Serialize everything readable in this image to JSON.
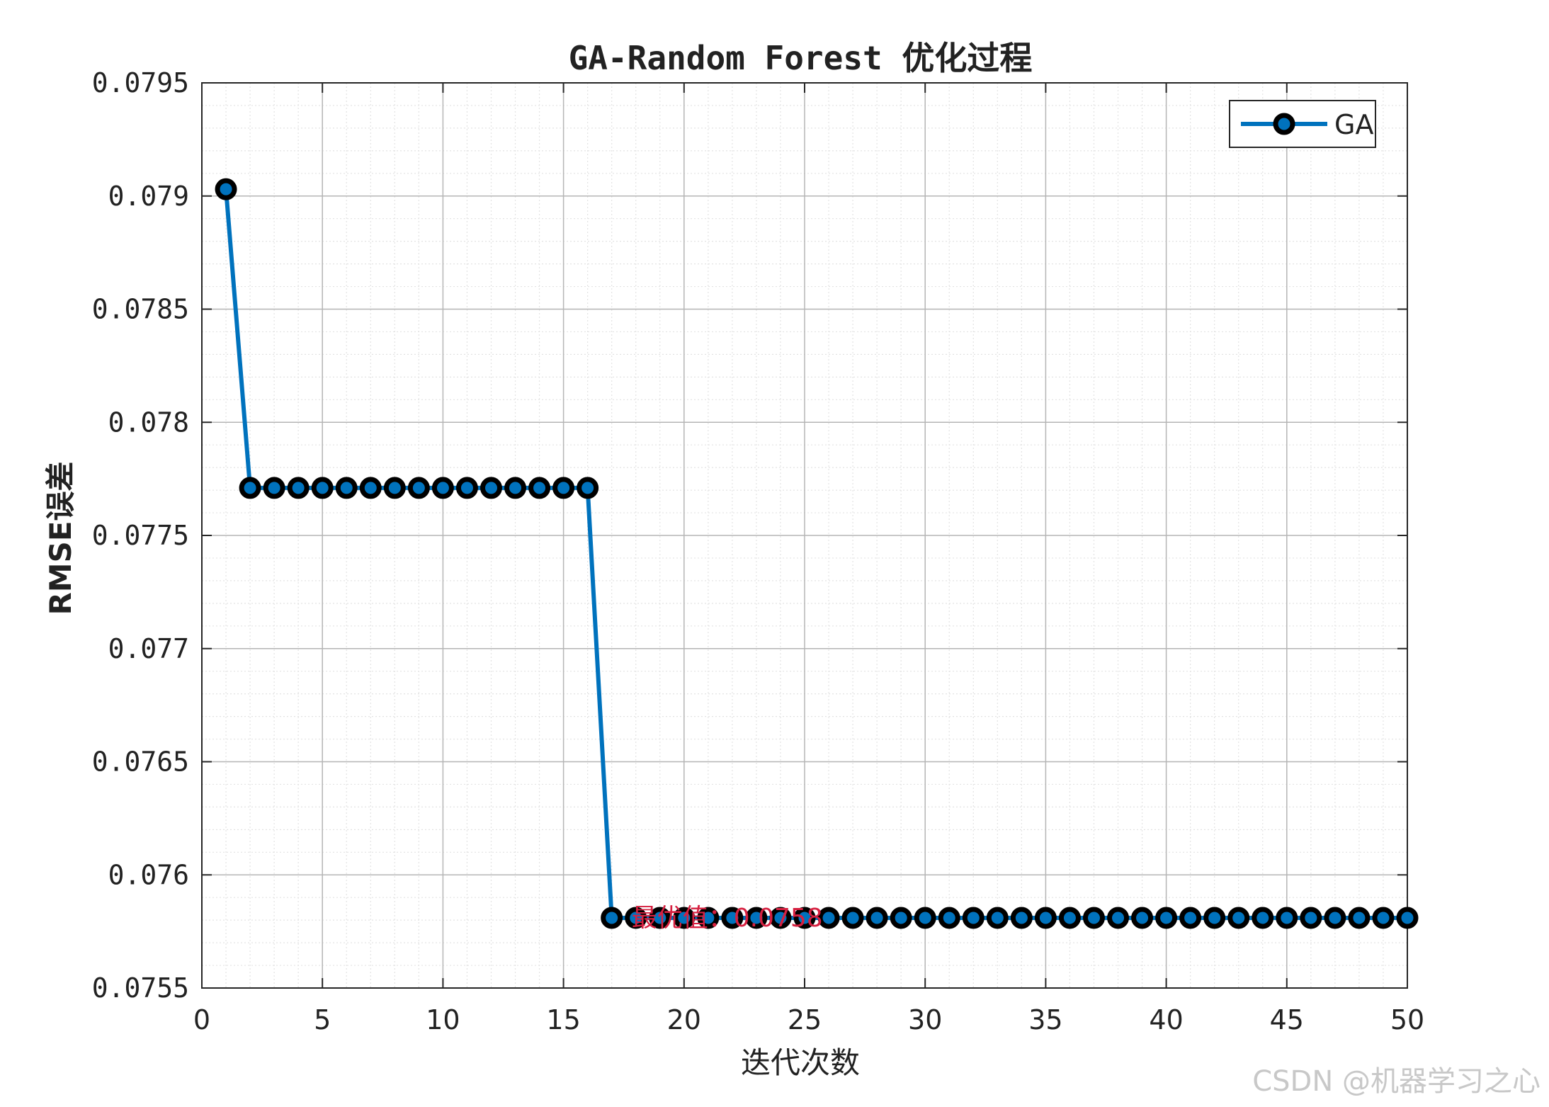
{
  "chart_data": {
    "type": "line",
    "title": "GA-Random Forest 优化过程",
    "xlabel": "迭代次数",
    "ylabel": "RMSE误差",
    "xlim": [
      0,
      50
    ],
    "ylim": [
      0.0755,
      0.0795
    ],
    "xticks": [
      0,
      5,
      10,
      15,
      20,
      25,
      30,
      35,
      40,
      45,
      50
    ],
    "xtick_labels": [
      "0",
      "5",
      "10",
      "15",
      "20",
      "25",
      "30",
      "35",
      "40",
      "45",
      "50"
    ],
    "yticks": [
      0.0755,
      0.076,
      0.0765,
      0.077,
      0.0775,
      0.078,
      0.0785,
      0.079,
      0.0795
    ],
    "ytick_labels": [
      "0.0755",
      "0.076",
      "0.0765",
      "0.077",
      "0.0775",
      "0.078",
      "0.0785",
      "0.079",
      "0.0795"
    ],
    "grid": true,
    "minor_grid": true,
    "legend_position": "top-right",
    "series": [
      {
        "name": "GA",
        "color": "#0072BD",
        "marker": "circle",
        "marker_edge": "#000000",
        "x": [
          1,
          2,
          3,
          4,
          5,
          6,
          7,
          8,
          9,
          10,
          11,
          12,
          13,
          14,
          15,
          16,
          17,
          18,
          19,
          20,
          21,
          22,
          23,
          24,
          25,
          26,
          27,
          28,
          29,
          30,
          31,
          32,
          33,
          34,
          35,
          36,
          37,
          38,
          39,
          40,
          41,
          42,
          43,
          44,
          45,
          46,
          47,
          48,
          49,
          50
        ],
        "values": [
          0.07903,
          0.07771,
          0.07771,
          0.07771,
          0.07771,
          0.07771,
          0.07771,
          0.07771,
          0.07771,
          0.07771,
          0.07771,
          0.07771,
          0.07771,
          0.07771,
          0.07771,
          0.07771,
          0.07581,
          0.07581,
          0.07581,
          0.07581,
          0.07581,
          0.07581,
          0.07581,
          0.07581,
          0.07581,
          0.07581,
          0.07581,
          0.07581,
          0.07581,
          0.07581,
          0.07581,
          0.07581,
          0.07581,
          0.07581,
          0.07581,
          0.07581,
          0.07581,
          0.07581,
          0.07581,
          0.07581,
          0.07581,
          0.07581,
          0.07581,
          0.07581,
          0.07581,
          0.07581,
          0.07581,
          0.07581,
          0.07581,
          0.07581
        ]
      }
    ],
    "annotation": {
      "text": "最优值：0.0758",
      "x": 18,
      "y": 0.07581,
      "color": "#D62040"
    }
  },
  "watermark": "CSDN @机器学习之心"
}
